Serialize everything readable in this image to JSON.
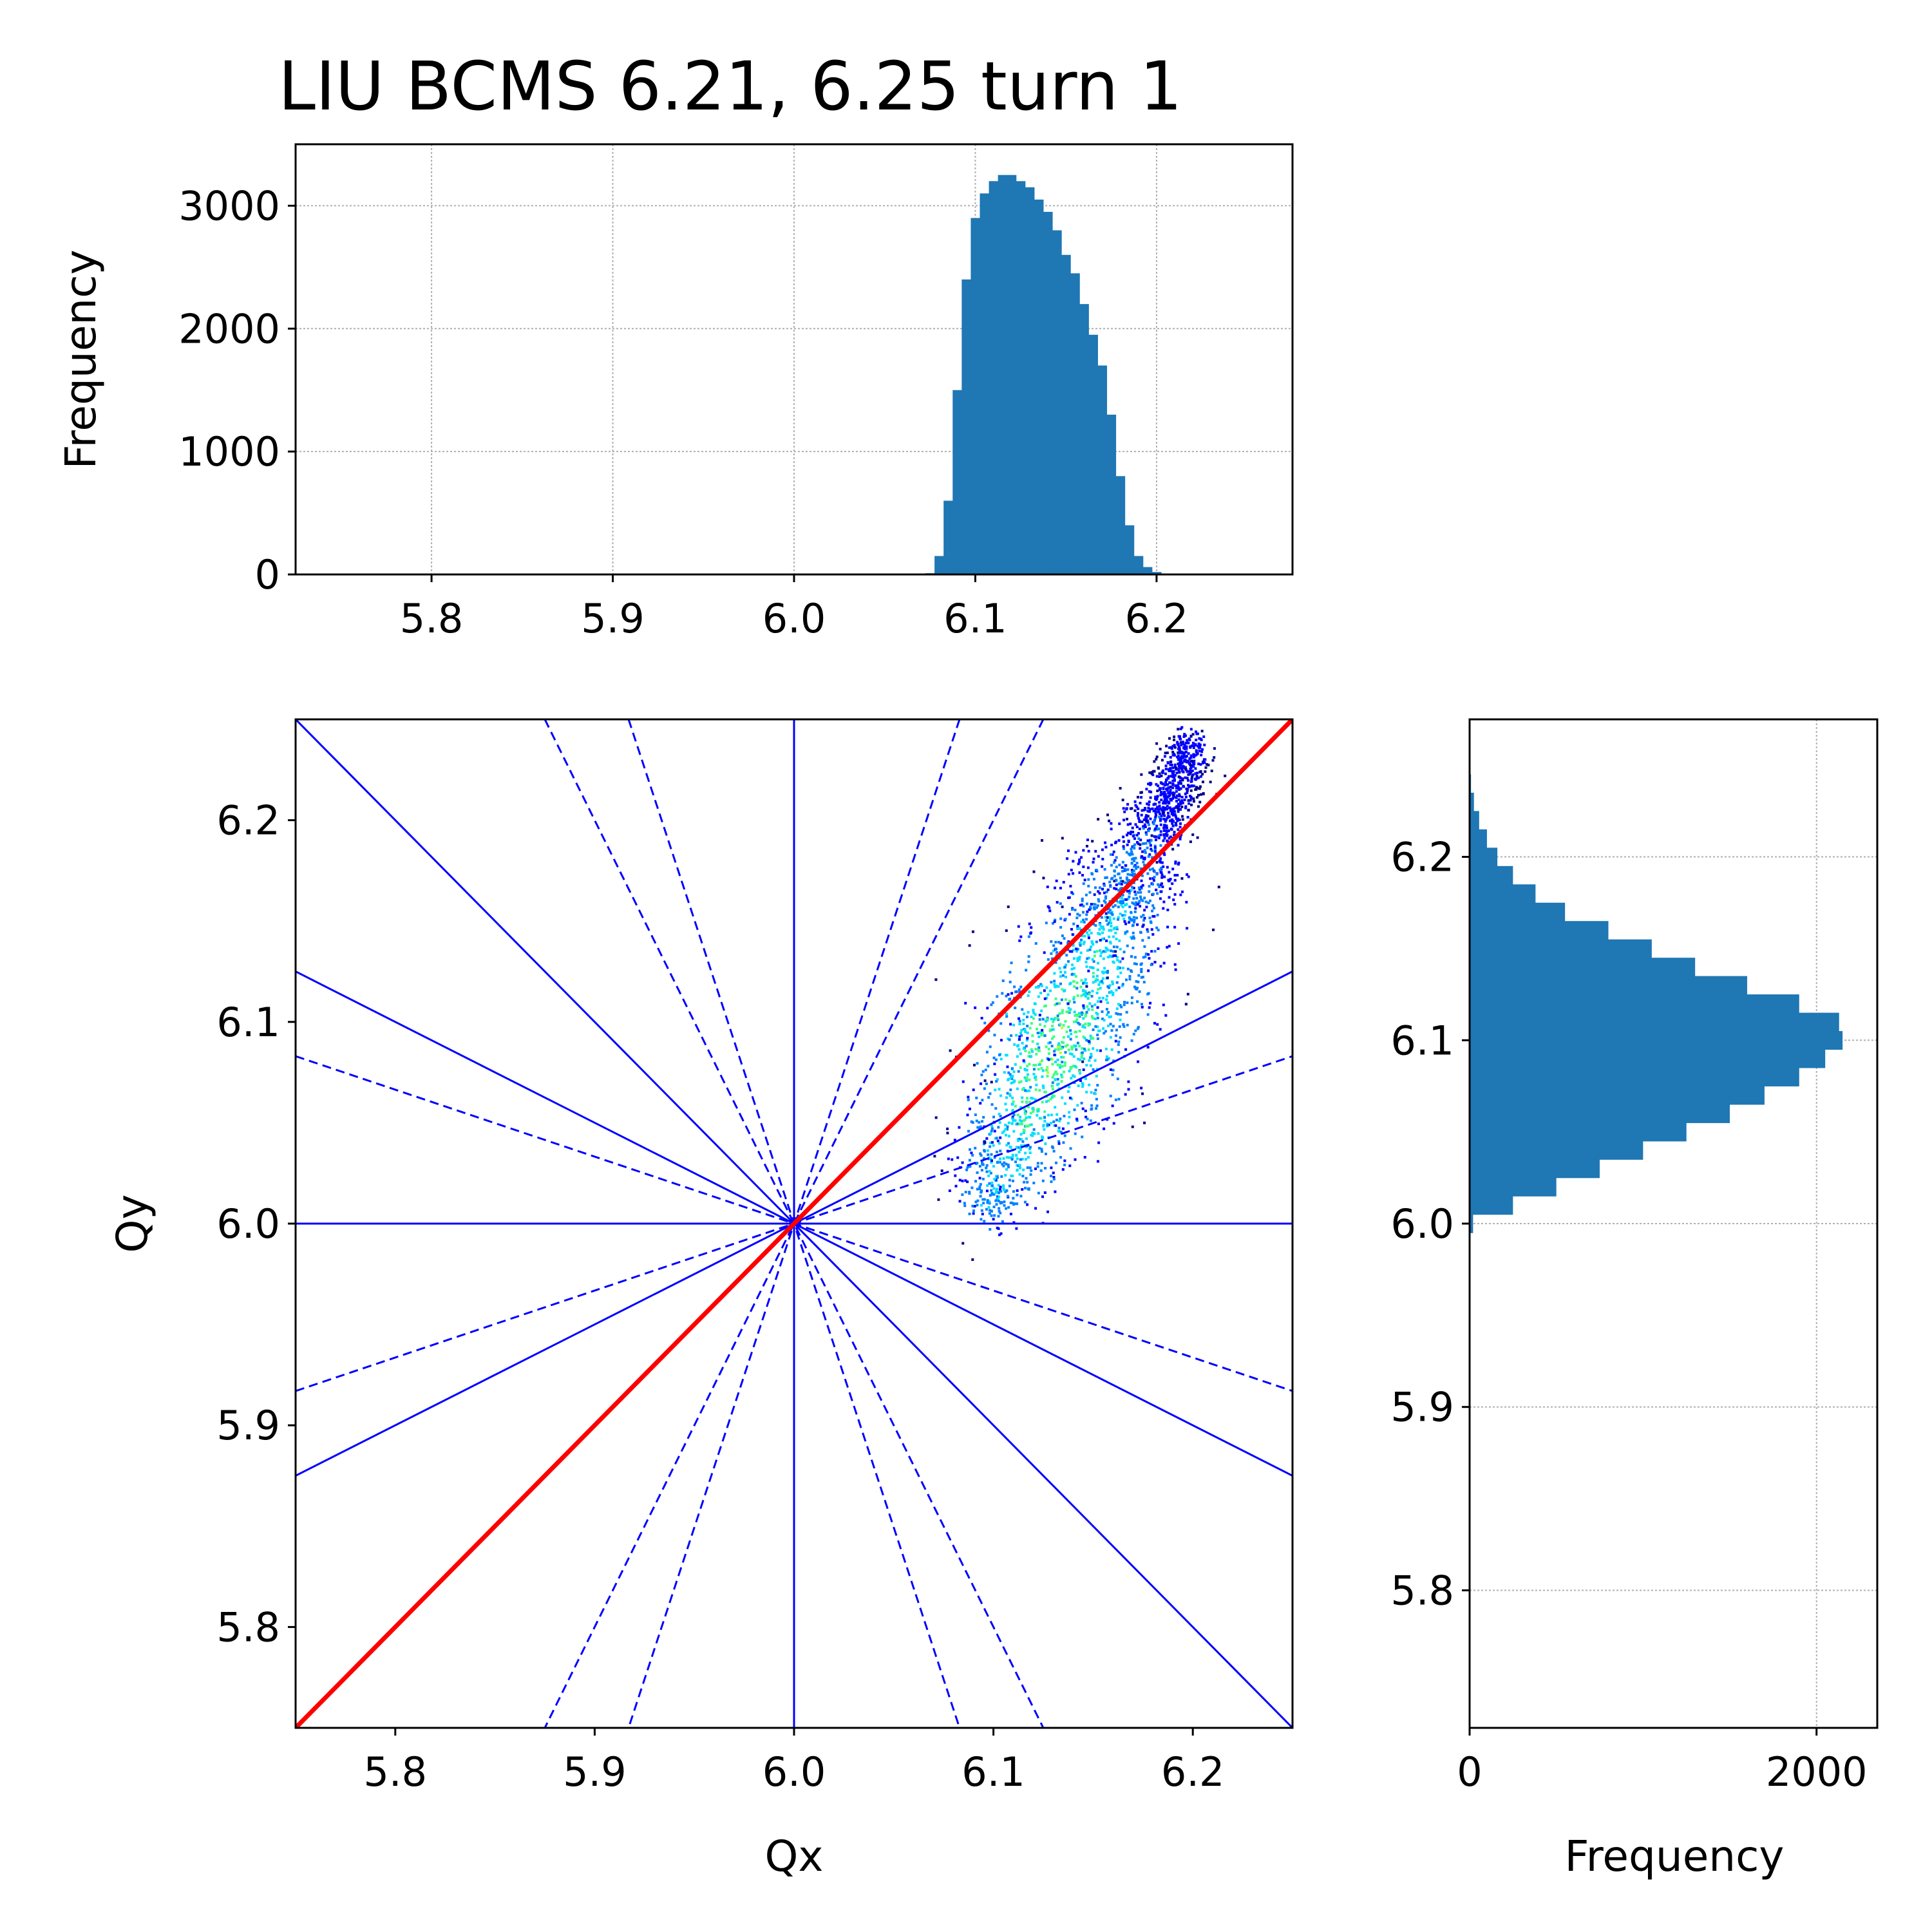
{
  "title": "LIU BCMS 6.21, 6.25 turn 1",
  "colors": {
    "hist_fill": "#1f77b4",
    "resonance_lines": "#0000ff",
    "diagonal_line": "#ff0000",
    "grid": "#b0b0b0",
    "density_colormap": [
      "#00008b",
      "#0000ff",
      "#0080ff",
      "#00e0ff",
      "#40ff80",
      "#c0ff20",
      "#ffd000",
      "#ff4000"
    ]
  },
  "chart_data": [
    {
      "id": "top_histogram",
      "type": "bar",
      "xlabel": "",
      "ylabel": "Frequency",
      "xlim": [
        5.725,
        6.275
      ],
      "ylim": [
        0,
        3500
      ],
      "xticks": [
        "5.8",
        "5.9",
        "6.0",
        "6.1",
        "6.2"
      ],
      "yticks": [
        "0",
        "1000",
        "2000",
        "3000"
      ],
      "grid": true,
      "bin_centers": [
        6.075,
        6.08,
        6.085,
        6.09,
        6.095,
        6.1,
        6.105,
        6.11,
        6.115,
        6.12,
        6.125,
        6.13,
        6.135,
        6.14,
        6.145,
        6.15,
        6.155,
        6.16,
        6.165,
        6.17,
        6.175,
        6.18,
        6.185,
        6.19,
        6.195,
        6.2,
        6.205
      ],
      "values": [
        10,
        150,
        600,
        1500,
        2400,
        2900,
        3100,
        3200,
        3250,
        3250,
        3200,
        3150,
        3050,
        2950,
        2800,
        2600,
        2450,
        2200,
        1950,
        1700,
        1300,
        800,
        400,
        150,
        60,
        20,
        5
      ]
    },
    {
      "id": "tune_diagram",
      "type": "scatter",
      "xlabel": "Qx",
      "ylabel": "Qy",
      "xlim": [
        5.75,
        6.25
      ],
      "ylim": [
        5.75,
        6.25
      ],
      "xticks": [
        "5.8",
        "5.9",
        "6.0",
        "6.1",
        "6.2"
      ],
      "yticks": [
        "5.8",
        "5.9",
        "6.0",
        "6.1",
        "6.2"
      ],
      "grid": false,
      "resonance_lines_solid": [
        {
          "x1": 5.75,
          "y1": 6.25,
          "x2": 6.25,
          "y2": 5.75
        },
        {
          "x1": 5.75,
          "y1": 6.125,
          "x2": 6.25,
          "y2": 5.875
        },
        {
          "x1": 5.75,
          "y1": 5.875,
          "x2": 6.25,
          "y2": 6.125
        },
        {
          "x1": 5.75,
          "y1": 6.0,
          "x2": 6.25,
          "y2": 6.0
        },
        {
          "x1": 6.0,
          "y1": 5.75,
          "x2": 6.0,
          "y2": 6.25
        }
      ],
      "resonance_lines_dashed": [
        {
          "x1": 5.875,
          "y1": 6.25,
          "x2": 6.125,
          "y2": 5.75
        },
        {
          "x1": 5.917,
          "y1": 6.25,
          "x2": 6.083,
          "y2": 5.75
        },
        {
          "x1": 6.083,
          "y1": 6.25,
          "x2": 5.917,
          "y2": 5.75
        },
        {
          "x1": 6.125,
          "y1": 6.25,
          "x2": 5.875,
          "y2": 5.75
        },
        {
          "x1": 5.75,
          "y1": 6.083,
          "x2": 6.25,
          "y2": 5.917
        },
        {
          "x1": 5.75,
          "y1": 5.917,
          "x2": 6.25,
          "y2": 6.083
        }
      ],
      "diagonal_line": {
        "x1": 5.75,
        "y1": 5.75,
        "x2": 6.25,
        "y2": 6.25
      },
      "distribution": {
        "core_start": [
          6.093,
          6.005
        ],
        "core_end": [
          6.2,
          6.24
        ],
        "spread_qx": 0.028,
        "spread_qy": 0.016
      }
    },
    {
      "id": "right_histogram",
      "type": "bar",
      "orientation": "horizontal",
      "xlabel": "Frequency",
      "ylabel": "",
      "xlim": [
        0,
        2350
      ],
      "ylim": [
        5.725,
        6.275
      ],
      "xticks": [
        "0",
        "2000"
      ],
      "yticks": [
        "5.8",
        "5.9",
        "6.0",
        "6.1",
        "6.2"
      ],
      "grid": true,
      "bin_centers": [
        6.0,
        6.01,
        6.02,
        6.03,
        6.04,
        6.05,
        6.06,
        6.07,
        6.08,
        6.09,
        6.1,
        6.11,
        6.12,
        6.13,
        6.14,
        6.15,
        6.16,
        6.17,
        6.18,
        6.19,
        6.2,
        6.21,
        6.22,
        6.23,
        6.24
      ],
      "values": [
        20,
        250,
        500,
        750,
        1000,
        1250,
        1500,
        1700,
        1900,
        2050,
        2150,
        2130,
        1900,
        1600,
        1300,
        1050,
        800,
        550,
        380,
        250,
        160,
        100,
        55,
        25,
        8
      ]
    }
  ]
}
